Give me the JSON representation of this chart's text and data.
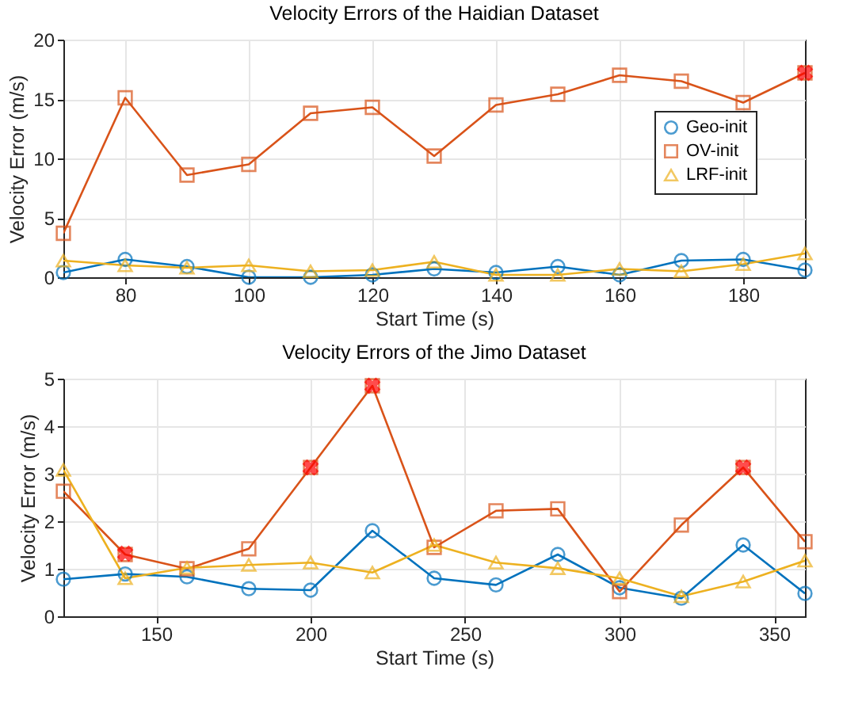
{
  "chart_data": [
    {
      "type": "line",
      "title": "Velocity Errors of the Haidian Dataset",
      "xlabel": "Start Time (s)",
      "ylabel": "Velocity Error (m/s)",
      "x": [
        70,
        80,
        90,
        100,
        110,
        120,
        130,
        140,
        150,
        160,
        170,
        180,
        190
      ],
      "xlim": [
        70,
        190
      ],
      "xticks": [
        80,
        100,
        120,
        140,
        160,
        180
      ],
      "ylim": [
        0,
        20
      ],
      "yticks": [
        0,
        5,
        10,
        15,
        20
      ],
      "grid": true,
      "legend": "right",
      "series": [
        {
          "name": "Geo-init",
          "color": "#0072bd",
          "marker": "circle",
          "values": [
            0.4,
            1.5,
            0.9,
            0,
            0,
            0.2,
            0.7,
            0.4,
            0.9,
            0.2,
            1.4,
            1.5,
            0.6
          ]
        },
        {
          "name": "OV-init",
          "color": "#d95319",
          "marker": "square",
          "values": [
            3.7,
            15.1,
            8.6,
            9.5,
            13.8,
            14.3,
            10.2,
            14.5,
            15.4,
            17.0,
            16.5,
            14.7,
            17.2
          ]
        },
        {
          "name": "LRF-init",
          "color": "#edb120",
          "marker": "triangle",
          "values": [
            1.4,
            1.0,
            0.8,
            1.0,
            0.5,
            0.6,
            1.3,
            0.2,
            0.2,
            0.7,
            0.5,
            1.1,
            2.0
          ]
        },
        {
          "type": "scatter",
          "color": "#ff0000",
          "marker": "cross",
          "x": [
            190
          ],
          "values": [
            17.2
          ]
        }
      ]
    },
    {
      "type": "line",
      "title": "Velocity Errors of the Jimo Dataset",
      "xlabel": "Start Time (s)",
      "ylabel": "Velocity Error (m/s)",
      "x": [
        120,
        140,
        160,
        180,
        200,
        220,
        240,
        260,
        280,
        300,
        320,
        340,
        360
      ],
      "xlim": [
        120,
        360
      ],
      "xticks": [
        150,
        200,
        250,
        300,
        350
      ],
      "ylim": [
        0,
        5
      ],
      "yticks": [
        0,
        1,
        2,
        3,
        4,
        5
      ],
      "grid": true,
      "series": [
        {
          "color": "#0072bd",
          "marker": "circle",
          "values": [
            0.78,
            0.89,
            0.83,
            0.58,
            0.55,
            1.8,
            0.8,
            0.66,
            1.3,
            0.6,
            0.38,
            1.5,
            0.48
          ]
        },
        {
          "color": "#d95319",
          "marker": "square",
          "values": [
            2.63,
            1.3,
            1.0,
            1.42,
            3.13,
            4.85,
            1.45,
            2.22,
            2.26,
            0.52,
            1.92,
            3.13,
            1.57
          ]
        },
        {
          "color": "#edb120",
          "marker": "triangle",
          "values": [
            3.08,
            0.8,
            1.02,
            1.08,
            1.13,
            0.92,
            1.5,
            1.13,
            1.01,
            0.8,
            0.42,
            0.73,
            1.17
          ]
        },
        {
          "type": "scatter",
          "color": "#ff0000",
          "marker": "cross",
          "x": [
            140,
            200,
            220,
            340
          ],
          "values": [
            1.32,
            3.13,
            4.85,
            3.13
          ]
        }
      ]
    }
  ]
}
